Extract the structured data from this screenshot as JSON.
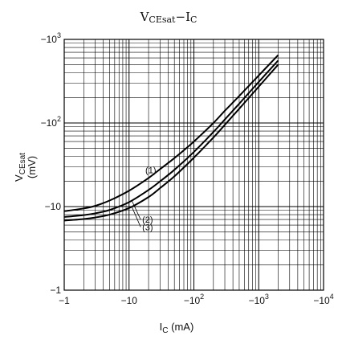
{
  "chart_data": {
    "type": "line",
    "title": {
      "main_v": "V",
      "main_v_sub": "CEsat",
      "sep": "−",
      "main_i": "I",
      "main_i_sub": "C"
    },
    "xlabel": {
      "main": "I",
      "sub": "C",
      "unit": " (mA)"
    },
    "ylabel": {
      "main": "V",
      "sub": "CEsat",
      "unit": "(mV)"
    },
    "x_scale": "log",
    "y_scale": "log",
    "xlim": [
      -1,
      -10000
    ],
    "ylim": [
      -1,
      -1000
    ],
    "grid": true,
    "x_ticks": [
      {
        "base": "−1",
        "exp": ""
      },
      {
        "base": "−10",
        "exp": ""
      },
      {
        "base": "−10",
        "exp": "2"
      },
      {
        "base": "−10",
        "exp": "3"
      },
      {
        "base": "−10",
        "exp": "4"
      }
    ],
    "y_ticks": [
      {
        "base": "−1",
        "exp": ""
      },
      {
        "base": "−10",
        "exp": ""
      },
      {
        "base": "−10",
        "exp": "2"
      },
      {
        "base": "−10",
        "exp": "3"
      }
    ],
    "series": [
      {
        "name": "(1)",
        "x": [
          -1,
          -2,
          -3,
          -5,
          -10,
          -20,
          -30,
          -50,
          -100,
          -200,
          -300,
          -500,
          -1000,
          -2000
        ],
        "y": [
          -8.8,
          -9.5,
          -10.2,
          -11.8,
          -15.5,
          -22,
          -28,
          -38,
          -60,
          -100,
          -140,
          -210,
          -370,
          -650
        ]
      },
      {
        "name": "(2)",
        "x": [
          -1,
          -2,
          -3,
          -5,
          -10,
          -20,
          -30,
          -50,
          -100,
          -200,
          -300,
          -500,
          -1000,
          -2000
        ],
        "y": [
          -7.5,
          -7.9,
          -8.3,
          -9.1,
          -11.3,
          -15.8,
          -20,
          -27.5,
          -45,
          -78,
          -110,
          -170,
          -310,
          -560
        ]
      },
      {
        "name": "(3)",
        "x": [
          -1,
          -2,
          -3,
          -5,
          -10,
          -20,
          -30,
          -50,
          -100,
          -200,
          -300,
          -500,
          -1000,
          -2000
        ],
        "y": [
          -6.8,
          -7.1,
          -7.4,
          -8,
          -9.6,
          -13,
          -16.6,
          -23,
          -38.5,
          -67,
          -95,
          -148,
          -272,
          -500
        ]
      }
    ],
    "curve_labels": [
      {
        "series": "(1)",
        "at_x": -20,
        "at_y": -30
      },
      {
        "series": "(2)",
        "at_x": -12,
        "at_y": -7
      },
      {
        "series": "(3)",
        "at_x": -12,
        "at_y": -5.7
      }
    ],
    "colors": {
      "grid": "#000000",
      "series": "#000000",
      "background": "#ffffff"
    }
  }
}
